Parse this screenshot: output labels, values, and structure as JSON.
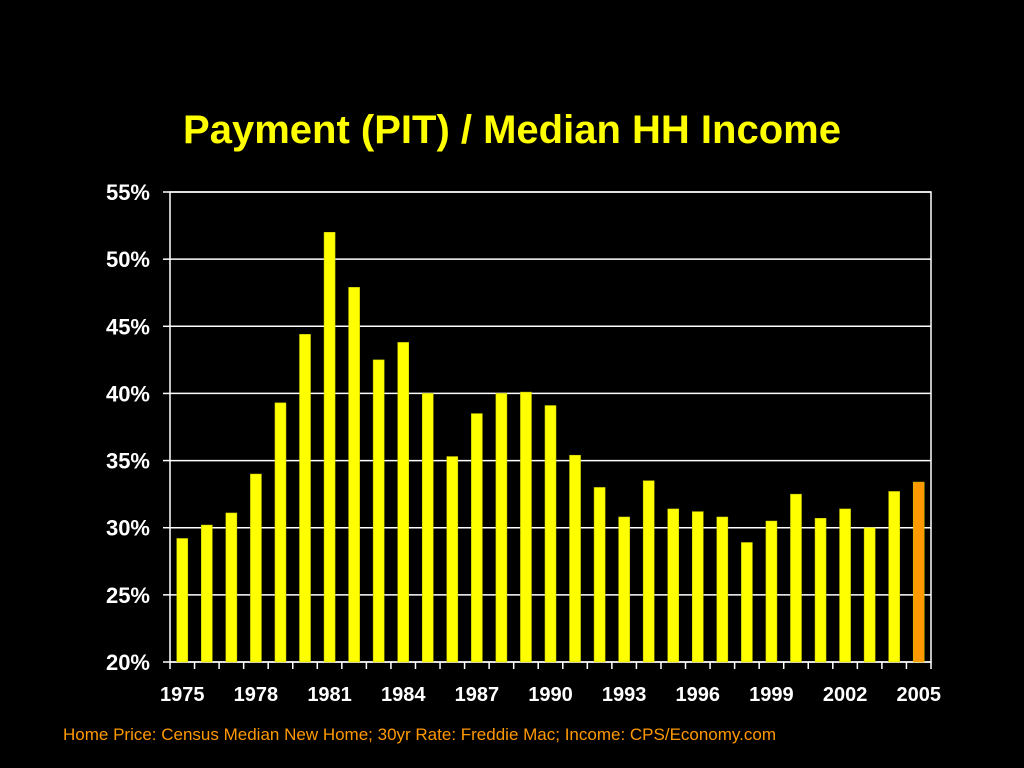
{
  "slide": {
    "title": "Payment (PIT) / Median HH Income",
    "source": "Home Price: Census Median New Home; 30yr Rate: Freddie Mac; Income: CPS/Economy.com"
  },
  "colors": {
    "background": "#000000",
    "bar": "#ffff00",
    "bar_highlight": "#ff9900",
    "title": "#ffff00",
    "source": "#ff9900",
    "axis": "#ffffff"
  },
  "chart_data": {
    "type": "bar",
    "title": "Payment (PIT) / Median HH Income",
    "xlabel": "",
    "ylabel": "",
    "categories": [
      "1975",
      "1976",
      "1977",
      "1978",
      "1979",
      "1980",
      "1981",
      "1982",
      "1983",
      "1984",
      "1985",
      "1986",
      "1987",
      "1988",
      "1989",
      "1990",
      "1991",
      "1992",
      "1993",
      "1994",
      "1995",
      "1996",
      "1997",
      "1998",
      "1999",
      "2000",
      "2001",
      "2002",
      "2003",
      "2004",
      "2005"
    ],
    "values": [
      29.2,
      30.2,
      31.1,
      34.0,
      39.3,
      44.4,
      52.0,
      47.9,
      42.5,
      43.8,
      40.0,
      35.3,
      38.5,
      40.0,
      40.1,
      39.1,
      35.4,
      33.0,
      30.8,
      33.5,
      31.4,
      31.2,
      30.8,
      28.9,
      30.5,
      32.5,
      30.7,
      31.4,
      30.0,
      32.7,
      33.4
    ],
    "highlight_category": "2005",
    "y_unit": "%",
    "ylim": [
      20,
      55
    ],
    "yticks": [
      "20%",
      "25%",
      "30%",
      "35%",
      "40%",
      "45%",
      "50%",
      "55%"
    ],
    "xtick_labels": [
      "1975",
      "1978",
      "1981",
      "1984",
      "1987",
      "1990",
      "1993",
      "1996",
      "1999",
      "2002",
      "2005"
    ],
    "grid": true,
    "legend": "none"
  }
}
